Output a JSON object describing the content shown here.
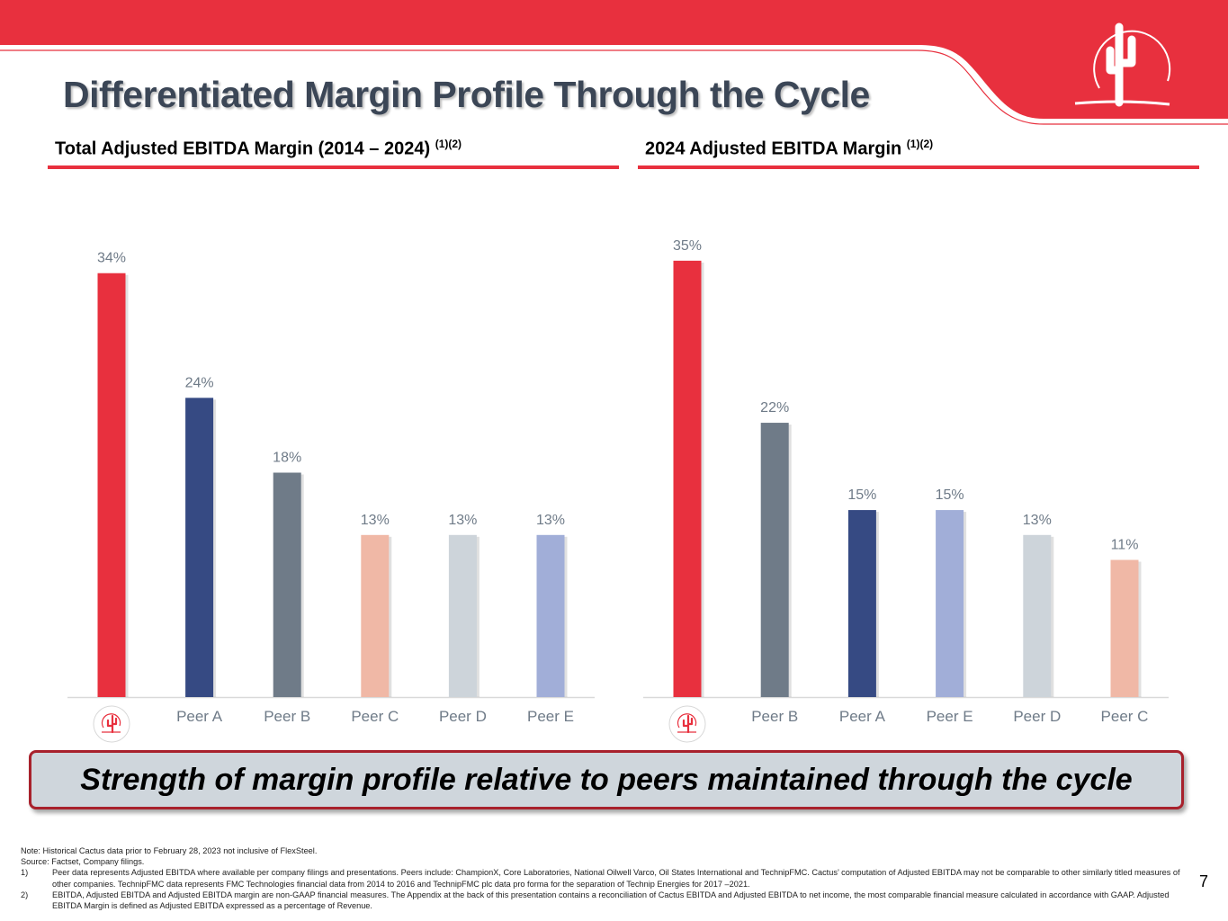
{
  "title": "Differentiated Margin Profile Through the Cycle",
  "colors": {
    "brand_red": "#e8303e",
    "navy": "#364a83",
    "slate": "#6f7b88",
    "salmon": "#f0b8a6",
    "light_gray": "#cdd4da",
    "periwinkle": "#a1aed8"
  },
  "panels": {
    "left": {
      "title": "Total Adjusted EBITDA Margin (2014 – 2024)",
      "footnote": "(1)(2)"
    },
    "right": {
      "title": "2024 Adjusted EBITDA Margin",
      "footnote": "(1)(2)"
    }
  },
  "chart_data": [
    {
      "type": "bar",
      "title": "Total Adjusted EBITDA Margin (2014 – 2024) (1)(2)",
      "categories": [
        "Cactus",
        "Peer A",
        "Peer B",
        "Peer C",
        "Peer D",
        "Peer E"
      ],
      "category_labels": [
        "",
        "Peer A",
        "Peer B",
        "Peer C",
        "Peer D",
        "Peer E"
      ],
      "category_icons": [
        "cactus-logo-icon",
        null,
        null,
        null,
        null,
        null
      ],
      "values": [
        34,
        24,
        18,
        13,
        13,
        13
      ],
      "value_labels": [
        "34%",
        "24%",
        "18%",
        "13%",
        "13%",
        "13%"
      ],
      "colors": [
        "#e8303e",
        "#364a83",
        "#6f7b88",
        "#f0b8a6",
        "#cdd4da",
        "#a1aed8"
      ],
      "ylim": [
        0,
        36
      ],
      "xlabel": "",
      "ylabel": ""
    },
    {
      "type": "bar",
      "title": "2024 Adjusted EBITDA Margin (1)(2)",
      "categories": [
        "Cactus",
        "Peer B",
        "Peer A",
        "Peer E",
        "Peer D",
        "Peer C"
      ],
      "category_labels": [
        "",
        "Peer B",
        "Peer A",
        "Peer E",
        "Peer D",
        "Peer C"
      ],
      "category_icons": [
        "cactus-logo-icon",
        null,
        null,
        null,
        null,
        null
      ],
      "values": [
        35,
        22,
        15,
        15,
        13,
        11
      ],
      "value_labels": [
        "35%",
        "22%",
        "15%",
        "15%",
        "13%",
        "11%"
      ],
      "colors": [
        "#e8303e",
        "#6f7b88",
        "#364a83",
        "#a1aed8",
        "#cdd4da",
        "#f0b8a6"
      ],
      "ylim": [
        0,
        36
      ],
      "xlabel": "",
      "ylabel": ""
    }
  ],
  "banner": "Strength of margin profile relative to peers maintained through the cycle",
  "notes": {
    "note": "Note: Historical Cactus data prior to February 28, 2023 not inclusive of FlexSteel.",
    "source": "Source: Factset, Company filings.",
    "items": [
      {
        "num": "1)",
        "text": "Peer data represents Adjusted EBITDA where available per company filings and presentations. Peers include: ChampionX, Core Laboratories, National Oilwell Varco, Oil States International and TechnipFMC. Cactus’ computation of Adjusted EBITDA may not be comparable to other similarly titled measures of other companies. TechnipFMC data represents FMC Technologies financial data from 2014 to 2016 and TechnipFMC plc data pro forma for the separation of Technip Energies for 2017 –2021."
      },
      {
        "num": "2)",
        "text": "EBITDA, Adjusted EBITDA and Adjusted EBITDA margin are non-GAAP financial measures. The Appendix at the back of this presentation contains a reconciliation of Cactus EBITDA and Adjusted EBITDA to net income, the most comparable financial measure calculated in accordance with GAAP.  Adjusted EBITDA Margin is defined as Adjusted EBITDA expressed as a percentage of Revenue."
      }
    ]
  },
  "page_number": "7"
}
